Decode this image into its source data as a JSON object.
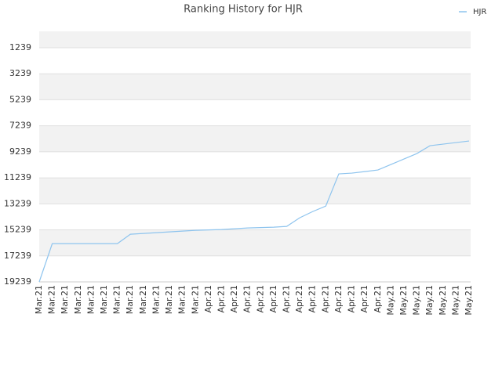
{
  "chart_data": {
    "type": "line",
    "title": "Ranking History for HJR",
    "categories": [
      "Mar.21",
      "Mar.21",
      "Mar.21",
      "Mar.21",
      "Mar.21",
      "Mar.21",
      "Mar.21",
      "Mar.21",
      "Mar.21",
      "Mar.21",
      "Mar.21",
      "Mar.21",
      "Mar.21",
      "Apr.21",
      "Apr.21",
      "Apr.21",
      "Apr.21",
      "Apr.21",
      "Apr.21",
      "Apr.21",
      "Apr.21",
      "Apr.21",
      "Apr.21",
      "Apr.21",
      "Apr.21",
      "Apr.21",
      "Apr.21",
      "May.21",
      "May.21",
      "May.21",
      "May.21",
      "May.21",
      "May.21",
      "May.21"
    ],
    "series": [
      {
        "name": "HJR",
        "color": "#8ec4ee",
        "values": [
          19239,
          16299,
          16299,
          16299,
          16299,
          16299,
          16299,
          15576,
          15516,
          15456,
          15395,
          15335,
          15275,
          15245,
          15215,
          15155,
          15094,
          15064,
          15034,
          14974,
          14311,
          13829,
          13407,
          10937,
          10877,
          10757,
          10636,
          10215,
          9793,
          9371,
          8769,
          8648,
          8528,
          8407
        ]
      }
    ],
    "ylim": [
      19239,
      -24
    ],
    "yticks": [
      1239,
      3239,
      5239,
      7239,
      9239,
      11239,
      13239,
      15239,
      17239,
      19239
    ],
    "grid": true,
    "legend": "top-right"
  }
}
